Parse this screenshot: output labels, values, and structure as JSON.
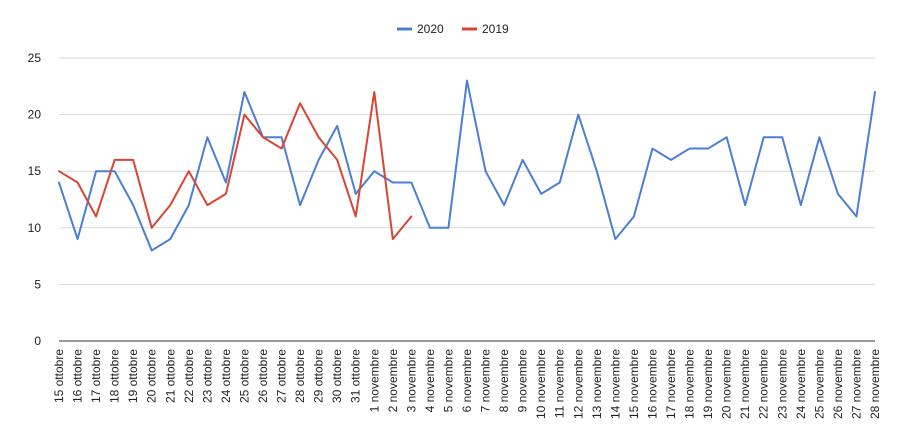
{
  "chart_data": {
    "type": "line",
    "title": "",
    "xlabel": "",
    "ylabel": "",
    "ylim": [
      0,
      25
    ],
    "yticks": [
      0,
      5,
      10,
      15,
      20,
      25
    ],
    "grid": true,
    "legend_position": "top",
    "categories": [
      "15 ottobre",
      "16 ottobre",
      "17 ottobre",
      "18 ottobre",
      "19 ottobre",
      "20 ottobre",
      "21 ottobre",
      "22 ottobre",
      "23 ottobre",
      "24 ottobre",
      "25 ottobre",
      "26 ottobre",
      "27 ottobre",
      "28 ottobre",
      "29 ottobre",
      "30 ottobre",
      "31 ottobre",
      "1 novembre",
      "2 novembre",
      "3 novembre",
      "4 novembre",
      "5 novembre",
      "6 novembre",
      "7 novembre",
      "8 novembre",
      "9 novembre",
      "10 novembre",
      "11 novembre",
      "12 novembre",
      "13 novembre",
      "14 novembre",
      "15 novembre",
      "16 novembre",
      "17 novembre",
      "18 novembre",
      "19 novembre",
      "20 novembre",
      "21 novembre",
      "22 novembre",
      "23 novembre",
      "24 novembre",
      "25 novembre",
      "26 novembre",
      "27 novembre",
      "28 novembre"
    ],
    "series": [
      {
        "name": "2020",
        "color": "#4a7fd4",
        "values": [
          14,
          9,
          15,
          15,
          12,
          8,
          9,
          12,
          18,
          14,
          22,
          18,
          18,
          12,
          16,
          19,
          13,
          15,
          14,
          14,
          10,
          10,
          23,
          15,
          12,
          16,
          13,
          14,
          20,
          15,
          9,
          11,
          17,
          16,
          17,
          17,
          18,
          12,
          18,
          18,
          12,
          18,
          13,
          11,
          22
        ]
      },
      {
        "name": "2019",
        "color": "#d94535",
        "values": [
          15,
          14,
          11,
          16,
          16,
          10,
          12,
          15,
          12,
          13,
          20,
          18,
          17,
          21,
          18,
          16,
          11,
          22,
          9,
          11,
          null,
          null,
          null,
          null,
          null,
          null,
          null,
          null,
          null,
          null,
          null,
          null,
          null,
          null,
          null,
          null,
          null,
          null,
          null,
          null,
          null,
          null,
          null,
          null,
          null
        ]
      }
    ]
  }
}
